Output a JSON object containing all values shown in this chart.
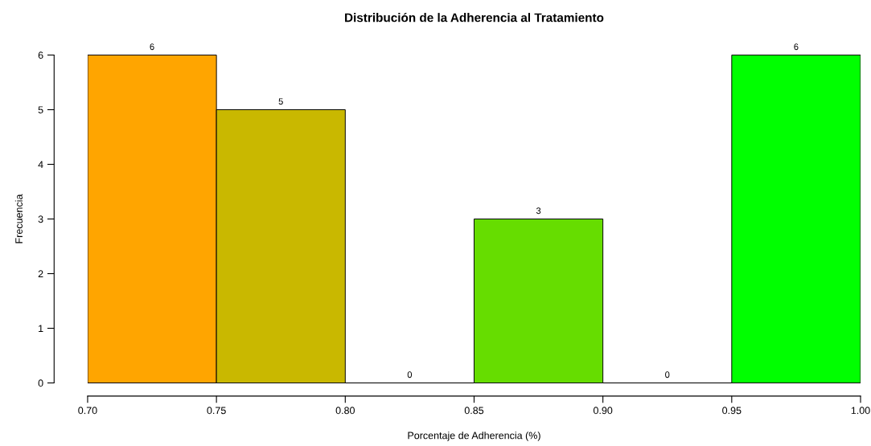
{
  "chart_data": {
    "type": "histogram",
    "title": "Distribución de la Adherencia al Tratamiento",
    "xlabel": "Porcentaje de Adherencia (%)",
    "ylabel": "Frecuencia",
    "bins": [
      0.7,
      0.75,
      0.8,
      0.85,
      0.9,
      0.95,
      1.0
    ],
    "values": [
      6,
      5,
      0,
      3,
      0,
      6
    ],
    "colors": [
      "#ffa500",
      "#c9b800",
      null,
      "#66dd00",
      null,
      "#00ff00"
    ],
    "xlim": [
      0.7,
      1.0
    ],
    "xticks": [
      {
        "value": 0.7,
        "label": "0.70"
      },
      {
        "value": 0.75,
        "label": "0.75"
      },
      {
        "value": 0.8,
        "label": "0.80"
      },
      {
        "value": 0.85,
        "label": "0.85"
      },
      {
        "value": 0.9,
        "label": "0.90"
      },
      {
        "value": 0.95,
        "label": "0.95"
      },
      {
        "value": 1.0,
        "label": "1.00"
      }
    ],
    "ylim": [
      0,
      6
    ],
    "yticks": [
      0,
      1,
      2,
      3,
      4,
      5,
      6
    ],
    "data_labels": true,
    "grid": false
  }
}
